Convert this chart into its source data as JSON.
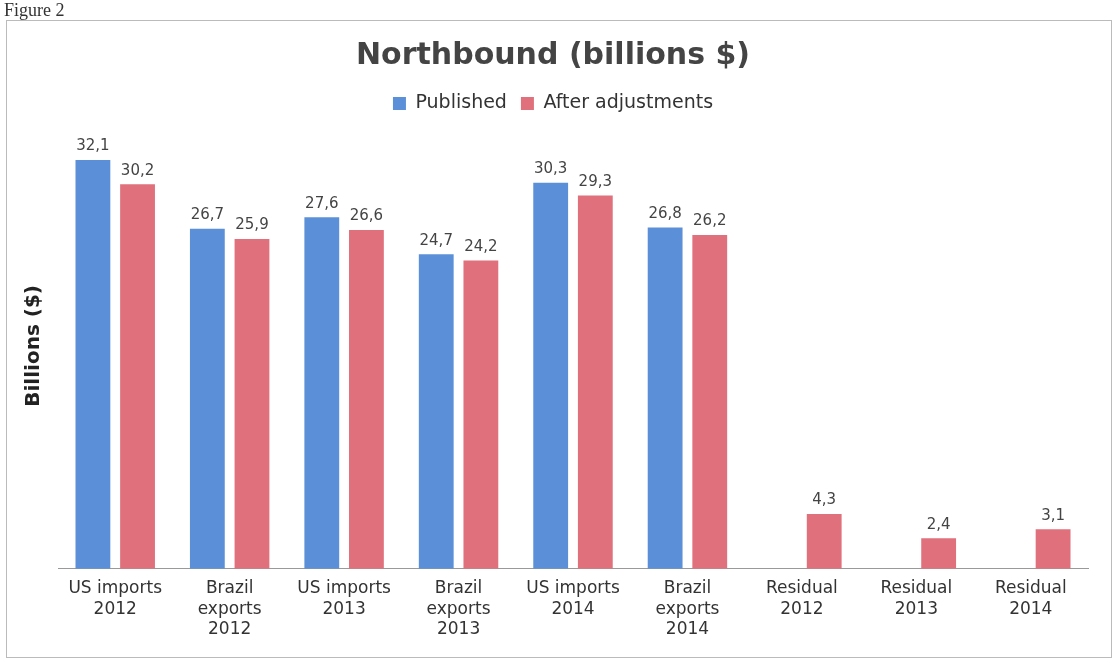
{
  "chart_data": {
    "type": "bar",
    "title": "Northbound (billions $)",
    "ylabel": "Billions ($)",
    "annotations": [
      "Figure 2"
    ],
    "categories": [
      "US imports 2012",
      "Brazil exports 2012",
      "US imports 2013",
      "Brazil exports 2013",
      "US imports 2014",
      "Brazil exports 2014",
      "Residual 2012",
      "Residual 2013",
      "Residual 2014"
    ],
    "series": [
      {
        "name": "Published",
        "color": "#5b8fd8",
        "values": [
          32.1,
          26.7,
          27.6,
          24.7,
          30.3,
          26.8,
          null,
          null,
          null
        ],
        "value_labels": [
          "32,1",
          "26,7",
          "27,6",
          "24,7",
          "30,3",
          "26,8",
          null,
          null,
          null
        ]
      },
      {
        "name": "After adjustments",
        "color": "#e0707c",
        "values": [
          30.2,
          25.9,
          26.6,
          24.2,
          29.3,
          26.2,
          4.3,
          2.4,
          3.1
        ],
        "value_labels": [
          "30,2",
          "25,9",
          "26,6",
          "24,2",
          "29,3",
          "26,2",
          "4,3",
          "2,4",
          "3,1"
        ]
      }
    ],
    "legend": "top",
    "grid": false,
    "tick_labels": "x"
  }
}
